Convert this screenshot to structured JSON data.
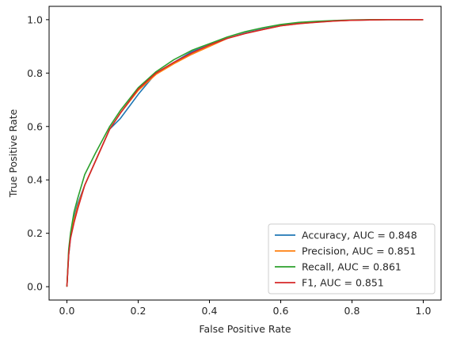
{
  "chart_data": {
    "type": "line",
    "xlabel": "False Positive Rate",
    "ylabel": "True Positive Rate",
    "xlim": [
      -0.05,
      1.05
    ],
    "ylim": [
      -0.05,
      1.05
    ],
    "xticks": [
      0.0,
      0.2,
      0.4,
      0.6,
      0.8,
      1.0
    ],
    "yticks": [
      0.0,
      0.2,
      0.4,
      0.6,
      0.8,
      1.0
    ],
    "xtick_labels": [
      "0.0",
      "0.2",
      "0.4",
      "0.6",
      "0.8",
      "1.0"
    ],
    "ytick_labels": [
      "0.0",
      "0.2",
      "0.4",
      "0.6",
      "0.8",
      "1.0"
    ],
    "grid": false,
    "legend_position": "bottom-right",
    "series": [
      {
        "name": "Accuracy, AUC = 0.848",
        "color": "#1f77b4",
        "x": [
          0,
          0.005,
          0.01,
          0.02,
          0.03,
          0.05,
          0.08,
          0.1,
          0.12,
          0.15,
          0.2,
          0.25,
          0.3,
          0.35,
          0.4,
          0.45,
          0.5,
          0.55,
          0.6,
          0.65,
          0.7,
          0.75,
          0.8,
          0.85,
          0.9,
          0.95,
          1.0
        ],
        "y": [
          0,
          0.12,
          0.18,
          0.26,
          0.31,
          0.38,
          0.47,
          0.53,
          0.59,
          0.63,
          0.72,
          0.8,
          0.84,
          0.88,
          0.905,
          0.93,
          0.95,
          0.965,
          0.978,
          0.986,
          0.992,
          0.996,
          0.998,
          0.999,
          1.0,
          1.0,
          1.0
        ]
      },
      {
        "name": "Precision, AUC = 0.851",
        "color": "#ff7f0e",
        "x": [
          0,
          0.005,
          0.01,
          0.02,
          0.03,
          0.05,
          0.08,
          0.1,
          0.12,
          0.15,
          0.2,
          0.25,
          0.3,
          0.35,
          0.4,
          0.45,
          0.5,
          0.55,
          0.6,
          0.65,
          0.7,
          0.75,
          0.8,
          0.85,
          0.9,
          0.95,
          1.0
        ],
        "y": [
          0,
          0.13,
          0.19,
          0.25,
          0.3,
          0.38,
          0.47,
          0.53,
          0.59,
          0.65,
          0.735,
          0.795,
          0.835,
          0.87,
          0.9,
          0.93,
          0.948,
          0.963,
          0.977,
          0.985,
          0.991,
          0.995,
          0.998,
          0.999,
          1.0,
          1.0,
          1.0
        ]
      },
      {
        "name": "Recall, AUC = 0.861",
        "color": "#2ca02c",
        "x": [
          0,
          0.005,
          0.01,
          0.02,
          0.03,
          0.05,
          0.08,
          0.1,
          0.12,
          0.15,
          0.2,
          0.25,
          0.3,
          0.35,
          0.4,
          0.45,
          0.5,
          0.55,
          0.6,
          0.65,
          0.7,
          0.75,
          0.8,
          0.85,
          0.9,
          0.95,
          1.0
        ],
        "y": [
          0,
          0.14,
          0.2,
          0.28,
          0.33,
          0.42,
          0.5,
          0.55,
          0.6,
          0.66,
          0.745,
          0.805,
          0.85,
          0.885,
          0.91,
          0.935,
          0.955,
          0.97,
          0.982,
          0.99,
          0.994,
          0.997,
          0.999,
          1.0,
          1.0,
          1.0,
          1.0
        ]
      },
      {
        "name": "F1, AUC = 0.851",
        "color": "#d62728",
        "x": [
          0,
          0.005,
          0.01,
          0.02,
          0.03,
          0.05,
          0.08,
          0.1,
          0.12,
          0.15,
          0.2,
          0.25,
          0.3,
          0.35,
          0.4,
          0.45,
          0.5,
          0.55,
          0.6,
          0.65,
          0.7,
          0.75,
          0.8,
          0.85,
          0.9,
          0.95,
          1.0
        ],
        "y": [
          0,
          0.12,
          0.18,
          0.24,
          0.29,
          0.38,
          0.47,
          0.53,
          0.59,
          0.65,
          0.74,
          0.8,
          0.84,
          0.875,
          0.905,
          0.93,
          0.948,
          0.963,
          0.977,
          0.985,
          0.99,
          0.995,
          0.998,
          0.999,
          1.0,
          1.0,
          1.0
        ]
      }
    ]
  }
}
